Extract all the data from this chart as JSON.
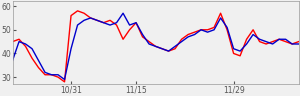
{
  "xlim_start": 0,
  "xlim_end": 44,
  "ylim": [
    27,
    62
  ],
  "yticks": [
    30,
    40,
    50,
    60
  ],
  "xtick_positions": [
    9,
    19,
    34,
    44
  ],
  "xtick_labels": [
    "10/31",
    "11/15",
    "11/29",
    ""
  ],
  "color_red": "#ff0000",
  "color_blue": "#0000cc",
  "linewidth": 1.0,
  "red_values": [
    45,
    46,
    43,
    38,
    34,
    31,
    31,
    30,
    28,
    56,
    58,
    57,
    55,
    54,
    53,
    54,
    52,
    46,
    50,
    53,
    47,
    45,
    43,
    42,
    41,
    42,
    46,
    48,
    49,
    50,
    50,
    51,
    57,
    50,
    40,
    39,
    46,
    50,
    45,
    44,
    45,
    46,
    45,
    44,
    45
  ],
  "blue_values": [
    37,
    45,
    44,
    42,
    37,
    32,
    31,
    31,
    29,
    42,
    52,
    54,
    55,
    54,
    53,
    52,
    53,
    57,
    52,
    53,
    48,
    44,
    43,
    42,
    41,
    43,
    45,
    47,
    48,
    50,
    49,
    50,
    55,
    51,
    42,
    41,
    44,
    48,
    46,
    45,
    44,
    46,
    46,
    44,
    44
  ]
}
